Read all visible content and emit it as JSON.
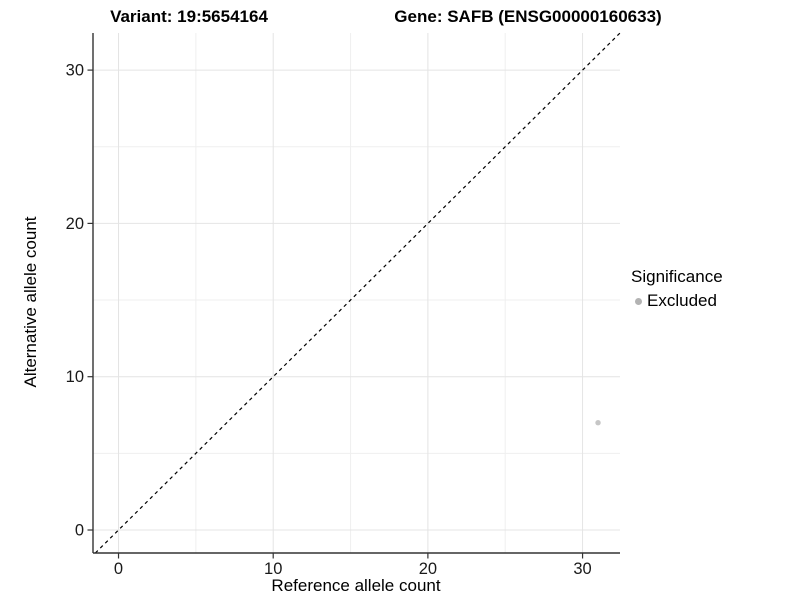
{
  "chart_data": {
    "type": "scatter",
    "title_variant": "Variant: 19:5654164",
    "title_gene": "Gene: SAFB (ENSG00000160633)",
    "xlabel": "Reference allele count",
    "ylabel": "Alternative allele count",
    "xlim": [
      -1.65,
      32.42
    ],
    "ylim": [
      -1.5,
      32.42
    ],
    "x_ticks": [
      0,
      10,
      20,
      30
    ],
    "y_ticks": [
      0,
      10,
      20,
      30
    ],
    "x_minor_gridlines": [
      5,
      15,
      25
    ],
    "y_minor_gridlines": [
      5,
      15,
      25
    ],
    "grid": true,
    "identity_line": {
      "style": "dashed",
      "slope": 1,
      "intercept": 0
    },
    "points": [
      {
        "x": 31,
        "y": 7,
        "significance": "Excluded"
      }
    ],
    "legend": {
      "title": "Significance",
      "position": "right",
      "entries": [
        {
          "label": "Excluded",
          "color": "#b3b3b3"
        }
      ]
    }
  },
  "colors": {
    "background": "#ffffff",
    "axis_line": "#333333",
    "tick_mark": "#333333",
    "tick_label": "#1a1a1a",
    "major_gridline": "#e4e4e4",
    "minor_gridline": "#efefef",
    "identity_line": "#000000",
    "point": "#c6c6c6",
    "legend_dot": "#b3b3b3"
  }
}
